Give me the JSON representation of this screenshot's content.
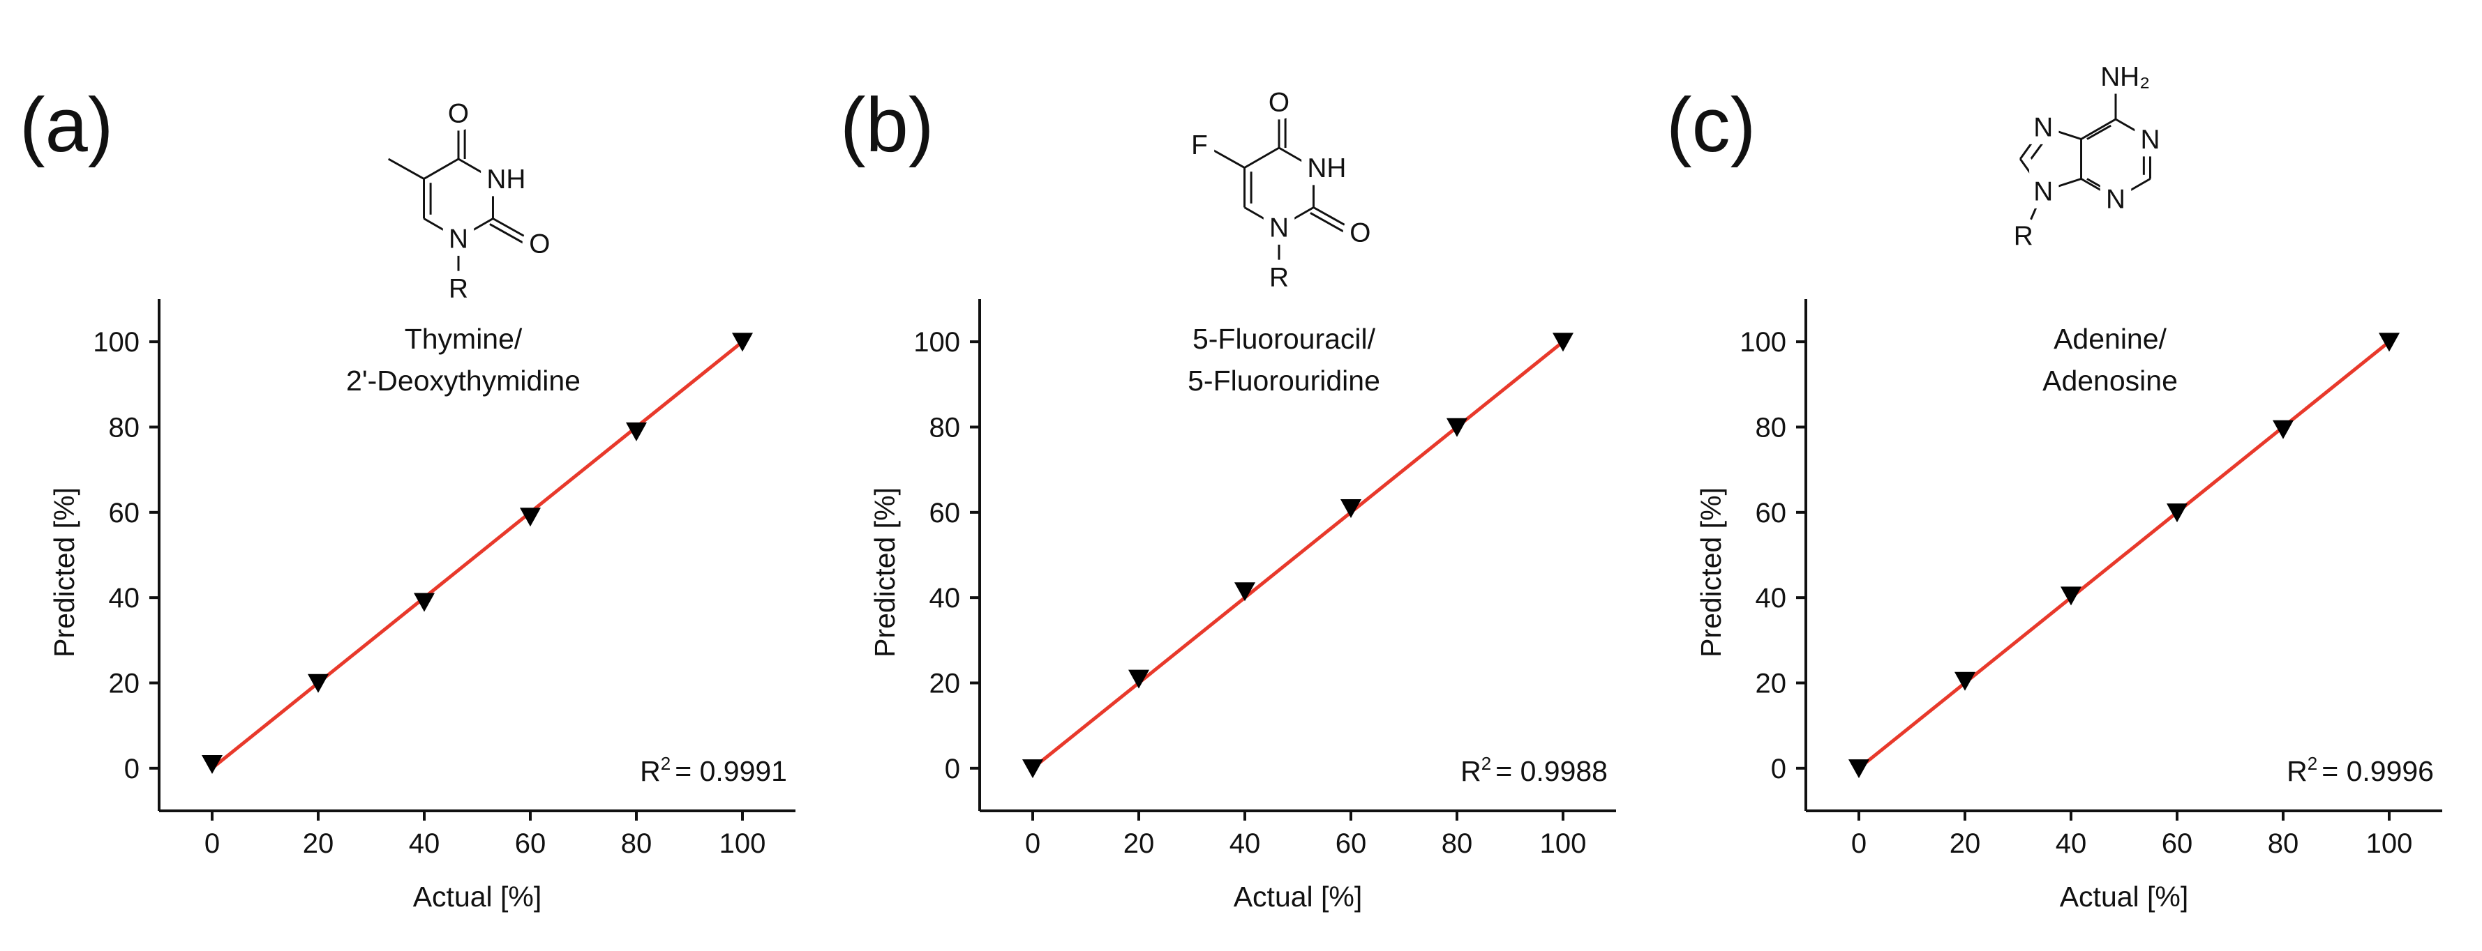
{
  "chart_data": [
    {
      "type": "scatter",
      "panel_label": "(a)",
      "compound": [
        "Thymine/",
        "2'-Deoxythymidine"
      ],
      "structure_atoms": [
        "O",
        "NH",
        "O",
        "N",
        "R"
      ],
      "x_label": "Actual [%]",
      "y_label": "Predicted [%]",
      "x": [
        0,
        20,
        40,
        60,
        80,
        100
      ],
      "values": [
        1,
        20,
        39,
        59,
        79,
        100
      ],
      "marker_color": "#000000",
      "fit": {
        "x": [
          0,
          100
        ],
        "y": [
          0,
          100
        ],
        "color": "#e8392b"
      },
      "r2": {
        "symbol": "R",
        "sup": "2",
        "text": "= 0.9991"
      },
      "xlim": [
        -10,
        110
      ],
      "ylim": [
        -10,
        110
      ],
      "xticks": [
        0,
        20,
        40,
        60,
        80,
        100
      ],
      "yticks": [
        0,
        20,
        40,
        60,
        80,
        100
      ]
    },
    {
      "type": "scatter",
      "panel_label": "(b)",
      "compound": [
        "5-Fluorouracil/",
        "5-Fluorouridine"
      ],
      "structure_atoms": [
        "O",
        "NH",
        "O",
        "N",
        "R",
        "F"
      ],
      "x_label": "Actual [%]",
      "y_label": "Predicted [%]",
      "x": [
        0,
        20,
        40,
        60,
        80,
        100
      ],
      "values": [
        0,
        21,
        41.5,
        61,
        80,
        100
      ],
      "marker_color": "#000000",
      "fit": {
        "x": [
          0,
          100
        ],
        "y": [
          0,
          100
        ],
        "color": "#e8392b"
      },
      "r2": {
        "symbol": "R",
        "sup": "2",
        "text": "= 0.9988"
      },
      "xlim": [
        -10,
        110
      ],
      "ylim": [
        -10,
        110
      ],
      "xticks": [
        0,
        20,
        40,
        60,
        80,
        100
      ],
      "yticks": [
        0,
        20,
        40,
        60,
        80,
        100
      ]
    },
    {
      "type": "scatter",
      "panel_label": "(c)",
      "compound": [
        "Adenine/",
        "Adenosine"
      ],
      "structure_atoms": [
        "NH₂",
        "N",
        "N",
        "N",
        "N",
        "R"
      ],
      "x_label": "Actual [%]",
      "y_label": "Predicted [%]",
      "x": [
        0,
        20,
        40,
        60,
        80,
        100
      ],
      "values": [
        0,
        20.5,
        40.5,
        60,
        79.5,
        100
      ],
      "marker_color": "#000000",
      "fit": {
        "x": [
          0,
          100
        ],
        "y": [
          0,
          100
        ],
        "color": "#e8392b"
      },
      "r2": {
        "symbol": "R",
        "sup": "2",
        "text": "= 0.9996"
      },
      "xlim": [
        -10,
        110
      ],
      "ylim": [
        -10,
        110
      ],
      "xticks": [
        0,
        20,
        40,
        60,
        80,
        100
      ],
      "yticks": [
        0,
        20,
        40,
        60,
        80,
        100
      ]
    }
  ]
}
